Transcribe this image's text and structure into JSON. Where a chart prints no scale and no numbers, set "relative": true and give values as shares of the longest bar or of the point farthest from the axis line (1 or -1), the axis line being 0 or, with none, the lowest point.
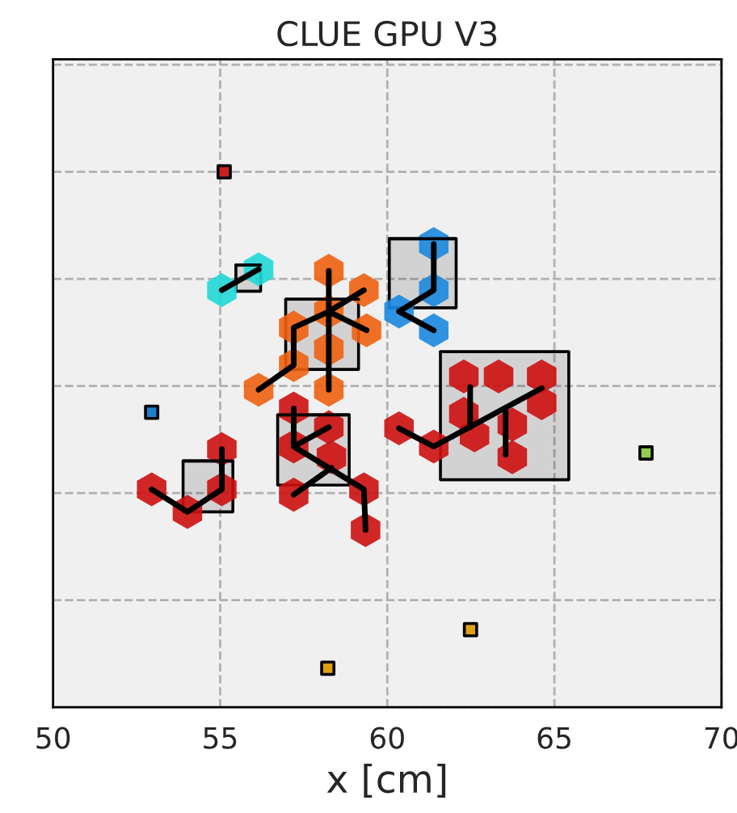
{
  "chart_data": {
    "type": "scatter",
    "title": "CLUE GPU V3",
    "xlabel": "x [cm]",
    "xlim": [
      50,
      70
    ],
    "xticks": [
      50,
      55,
      60,
      65,
      70
    ],
    "relative": true,
    "tick_labels": "x",
    "grid": true,
    "legend": false,
    "series": [
      {
        "type": "line",
        "color": "#000000",
        "x": [
          55.47,
          56.21
        ],
        "values": [
          0.826,
          0.826
        ],
        "lower": [
          0.777,
          0.777
        ],
        "upper": [
          0.826,
          0.826
        ]
      },
      {
        "type": "line",
        "color": "#000000",
        "x": [
          56.96,
          59.14
        ],
        "values": [
          0.762,
          0.762
        ],
        "lower": [
          0.631,
          0.631
        ],
        "upper": [
          0.762,
          0.762
        ]
      },
      {
        "type": "line",
        "color": "#000000",
        "x": [
          60.06,
          62.06
        ],
        "values": [
          0.875,
          0.875
        ],
        "lower": [
          0.746,
          0.746
        ],
        "upper": [
          0.875,
          0.875
        ]
      },
      {
        "type": "line",
        "color": "#000000",
        "x": [
          61.59,
          65.43
        ],
        "values": [
          0.664,
          0.664
        ],
        "lower": [
          0.425,
          0.425
        ],
        "upper": [
          0.664,
          0.664
        ]
      },
      {
        "type": "line",
        "color": "#000000",
        "x": [
          56.72,
          58.86
        ],
        "values": [
          0.546,
          0.546
        ],
        "lower": [
          0.415,
          0.415
        ],
        "upper": [
          0.546,
          0.546
        ]
      },
      {
        "type": "line",
        "color": "#000000",
        "x": [
          53.89,
          55.38
        ],
        "values": [
          0.46,
          0.46
        ],
        "lower": [
          0.365,
          0.365
        ],
        "upper": [
          0.46,
          0.46
        ]
      },
      {
        "color": "#20d8d8",
        "x": [
          55.05,
          56.15
        ],
        "values": [
          0.779,
          0.818
        ]
      },
      {
        "color": "#f06010",
        "x": [
          58.25,
          59.3,
          57.2,
          58.25,
          59.38,
          58.25,
          57.2,
          56.15,
          58.25
        ],
        "values": [
          0.815,
          0.779,
          0.709,
          0.739,
          0.704,
          0.669,
          0.639,
          0.593,
          0.593
        ]
      },
      {
        "color": "#1a88e0",
        "x": [
          61.39,
          61.39,
          60.35,
          61.39
        ],
        "values": [
          0.865,
          0.779,
          0.739,
          0.704
        ]
      },
      {
        "color": "#cc1010",
        "x": [
          60.35,
          61.39,
          62.29,
          63.33,
          64.62,
          62.29,
          64.62,
          63.74,
          63.74,
          62.61
        ],
        "values": [
          0.521,
          0.487,
          0.618,
          0.618,
          0.618,
          0.548,
          0.568,
          0.467,
          0.528,
          0.508
        ]
      },
      {
        "color": "#cc1010",
        "x": [
          57.2,
          57.2,
          58.25,
          58.33,
          57.2,
          59.3,
          59.35
        ],
        "values": [
          0.558,
          0.487,
          0.523,
          0.467,
          0.397,
          0.407,
          0.331
        ]
      },
      {
        "color": "#cc1010",
        "x": [
          52.95,
          54.02,
          55.05,
          55.05
        ],
        "values": [
          0.407,
          0.365,
          0.482,
          0.407
        ]
      },
      {
        "type": "line",
        "color": "#000000",
        "x": [
          55.05,
          56.15
        ],
        "values": [
          0.779,
          0.818
        ]
      },
      {
        "type": "line",
        "color": "#000000",
        "x": [
          58.25,
          58.25,
          null,
          56.15,
          57.2,
          57.2,
          58.25,
          59.3,
          null,
          58.25,
          59.38
        ],
        "values": [
          0.815,
          0.593,
          null,
          0.593,
          0.639,
          0.709,
          0.739,
          0.779,
          null,
          0.739,
          0.704
        ]
      },
      {
        "type": "line",
        "color": "#000000",
        "x": [
          61.39,
          61.39,
          60.35,
          61.39
        ],
        "values": [
          0.865,
          0.779,
          0.739,
          0.704
        ]
      },
      {
        "type": "line",
        "color": "#000000",
        "x": [
          60.35,
          61.39,
          64.62,
          null,
          62.48,
          62.48,
          null,
          63.54,
          63.54
        ],
        "values": [
          0.521,
          0.487,
          0.596,
          null,
          0.598,
          0.523,
          null,
          0.558,
          0.472
        ]
      },
      {
        "type": "line",
        "color": "#000000",
        "x": [
          57.2,
          57.2,
          58.25,
          null,
          57.2,
          59.3,
          59.35,
          null,
          57.2,
          58.33
        ],
        "values": [
          0.558,
          0.487,
          0.523,
          null,
          0.487,
          0.407,
          0.331,
          null,
          0.397,
          0.447
        ]
      },
      {
        "type": "line",
        "color": "#000000",
        "x": [
          52.95,
          54.02,
          55.05,
          55.05
        ],
        "values": [
          0.407,
          0.365,
          0.407,
          0.482
        ]
      },
      {
        "marker": "square",
        "x": [
          55.12,
          52.95,
          67.74,
          58.22,
          62.49
        ],
        "values": [
          1.0,
          0.551,
          0.475,
          0.073,
          0.145
        ],
        "colors": [
          "#cc2020",
          "#1e7fd0",
          "#90d050",
          "#e0a010",
          "#e0a010"
        ]
      }
    ]
  }
}
